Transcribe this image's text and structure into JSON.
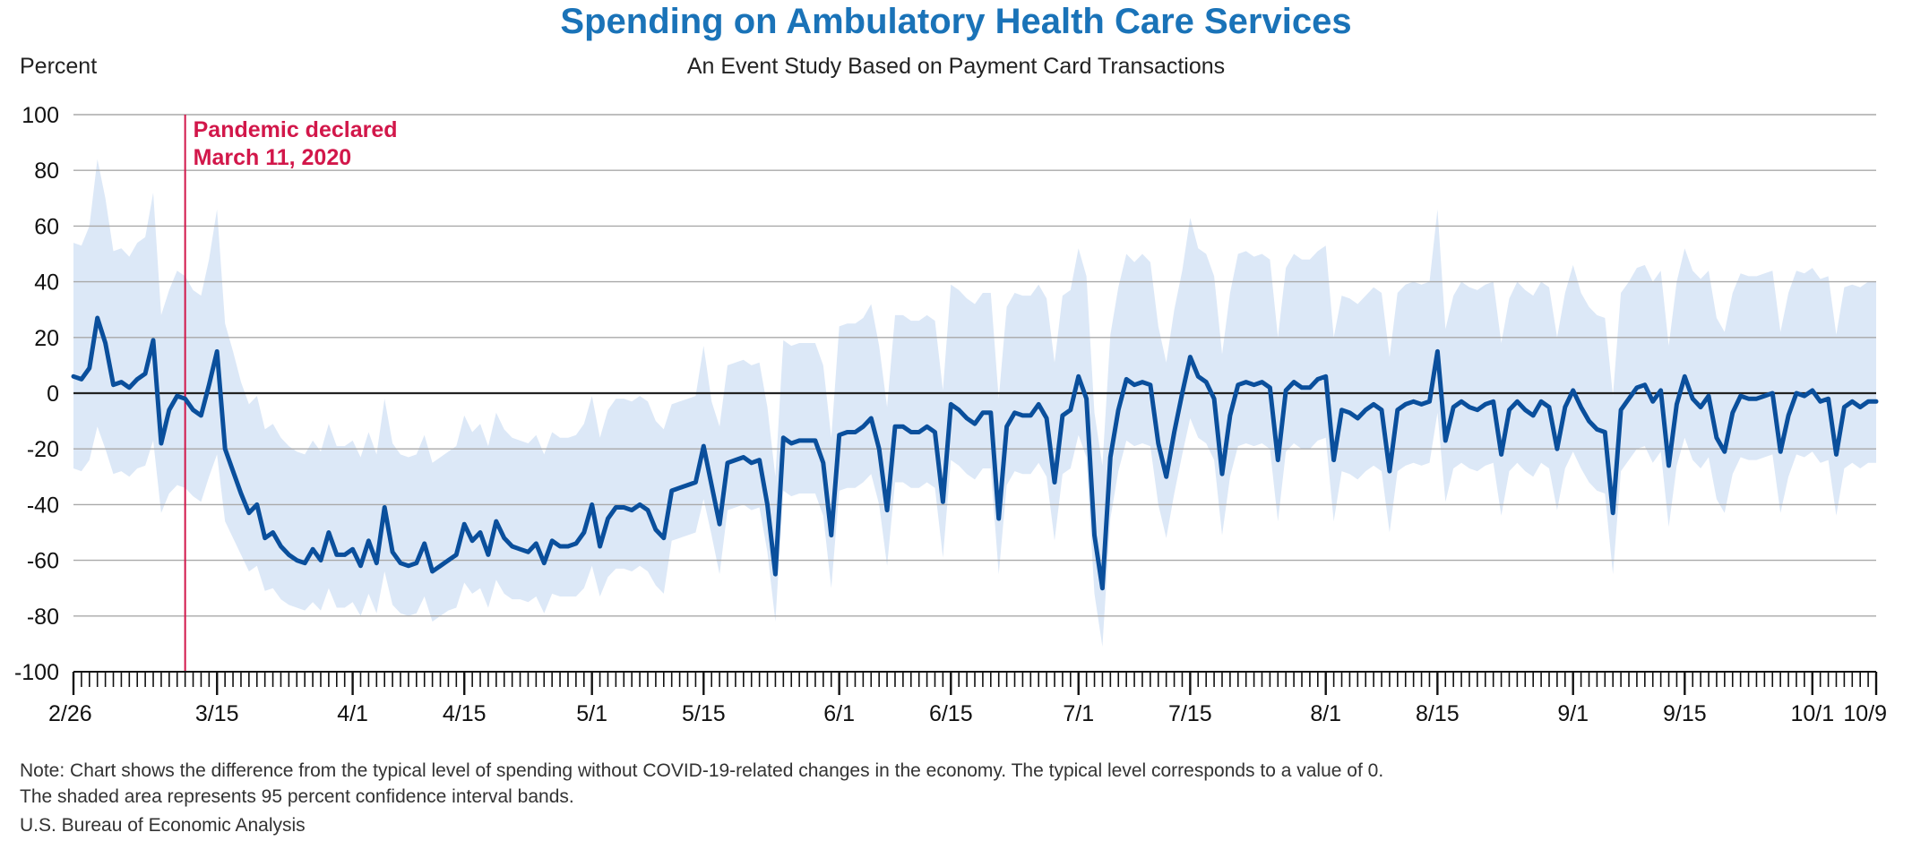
{
  "chart_data": {
    "type": "line",
    "title": "Spending on Ambulatory Health Care Services",
    "subtitle": "An Event Study Based on Payment Card Transactions",
    "ylabel": "Percent",
    "ylim": [
      -100,
      100
    ],
    "yticks": [
      100,
      80,
      60,
      40,
      20,
      0,
      -20,
      -40,
      -60,
      -80,
      -100
    ],
    "x_start_date": "2020-02-26",
    "x_end_date": "2020-10-09",
    "xtick_labels": [
      {
        "date": "2020-02-26",
        "label": "2/26"
      },
      {
        "date": "2020-03-15",
        "label": "3/15"
      },
      {
        "date": "2020-04-01",
        "label": "4/1"
      },
      {
        "date": "2020-04-15",
        "label": "4/15"
      },
      {
        "date": "2020-05-01",
        "label": "5/1"
      },
      {
        "date": "2020-05-15",
        "label": "5/15"
      },
      {
        "date": "2020-06-01",
        "label": "6/1"
      },
      {
        "date": "2020-06-15",
        "label": "6/15"
      },
      {
        "date": "2020-07-01",
        "label": "7/1"
      },
      {
        "date": "2020-07-15",
        "label": "7/15"
      },
      {
        "date": "2020-08-01",
        "label": "8/1"
      },
      {
        "date": "2020-08-15",
        "label": "8/15"
      },
      {
        "date": "2020-09-01",
        "label": "9/1"
      },
      {
        "date": "2020-09-15",
        "label": "9/15"
      },
      {
        "date": "2020-10-01",
        "label": "10/1"
      },
      {
        "date": "2020-10-09",
        "label": "10/9"
      }
    ],
    "annotation": {
      "date": "2020-03-11",
      "line1": "Pandemic declared",
      "line2": "March 11, 2020"
    },
    "series": [
      {
        "values": [
          6,
          5,
          9,
          27,
          18,
          3,
          4,
          2,
          5,
          7,
          19,
          -18,
          -6,
          -1,
          -2,
          -6,
          -8,
          3,
          15,
          -20,
          -28,
          -36,
          -43,
          -40,
          -52,
          -50,
          -55,
          -58,
          -60,
          -61,
          -56,
          -60,
          -50,
          -58,
          -58,
          -56,
          -62,
          -53,
          -61,
          -41,
          -57,
          -61,
          -62,
          -61,
          -54,
          -64,
          -62,
          -60,
          -58,
          -47,
          -53,
          -50,
          -58,
          -46,
          -52,
          -55,
          -56,
          -57,
          -54,
          -61,
          -53,
          -55,
          -55,
          -54,
          -50,
          -40,
          -55,
          -45,
          -41,
          -41,
          -42,
          -40,
          -42,
          -49,
          -52,
          -35,
          -34,
          -33,
          -32,
          -19,
          -33,
          -47,
          -25,
          -24,
          -23,
          -25,
          -24,
          -40,
          -65,
          -16,
          -18,
          -17,
          -17,
          -17,
          -25,
          -51,
          -15,
          -14,
          -14,
          -12,
          -9,
          -20,
          -42,
          -12,
          -12,
          -14,
          -14,
          -12,
          -14,
          -39,
          -4,
          -6,
          -9,
          -11,
          -7,
          -7,
          -45,
          -12,
          -7,
          -8,
          -8,
          -4,
          -9,
          -32,
          -8,
          -6,
          6,
          -2,
          -51,
          -70,
          -23,
          -6,
          5,
          3,
          4,
          3,
          -18,
          -30,
          -14,
          0,
          13,
          6,
          4,
          -2,
          -29,
          -8,
          3,
          4,
          3,
          4,
          2,
          -24,
          1,
          4,
          2,
          2,
          5,
          6,
          -24,
          -6,
          -7,
          -9,
          -6,
          -4,
          -6,
          -28,
          -6,
          -4,
          -3,
          -4,
          -3,
          15,
          -17,
          -5,
          -3,
          -5,
          -6,
          -4,
          -3,
          -22,
          -6,
          -3,
          -6,
          -8,
          -3,
          -5,
          -20,
          -5,
          1,
          -5,
          -10,
          -13,
          -14,
          -43,
          -6,
          -2,
          2,
          3,
          -3,
          1,
          -26,
          -4,
          6,
          -2,
          -5,
          -1,
          -16,
          -21,
          -7,
          -1,
          -2,
          -2,
          -1,
          0,
          -21,
          -8,
          0,
          -1,
          1,
          -3,
          -2,
          -22,
          -5,
          -3,
          -5,
          -3,
          -3
        ]
      },
      {
        "name": "95 percent confidence interval",
        "band": "upper",
        "values": [
          54,
          53,
          60,
          84,
          70,
          51,
          52,
          49,
          54,
          56,
          72,
          28,
          37,
          44,
          42,
          37,
          35,
          48,
          66,
          25,
          15,
          4,
          -4,
          -1,
          -13,
          -11,
          -16,
          -19,
          -21,
          -22,
          -17,
          -21,
          -11,
          -19,
          -19,
          -17,
          -23,
          -14,
          -22,
          -2,
          -18,
          -22,
          -23,
          -22,
          -15,
          -25,
          -23,
          -21,
          -19,
          -8,
          -14,
          -11,
          -19,
          -7,
          -13,
          -16,
          -17,
          -18,
          -15,
          -22,
          -14,
          -16,
          -16,
          -15,
          -11,
          -1,
          -16,
          -6,
          -2,
          -2,
          -3,
          -1,
          -3,
          -10,
          -13,
          -4,
          -3,
          -2,
          -1,
          17,
          -3,
          -12,
          10,
          11,
          12,
          10,
          11,
          -5,
          -30,
          19,
          17,
          18,
          18,
          18,
          10,
          -16,
          24,
          25,
          25,
          27,
          32,
          17,
          -5,
          28,
          28,
          26,
          26,
          28,
          26,
          1,
          39,
          37,
          34,
          32,
          36,
          36,
          -2,
          31,
          36,
          35,
          35,
          39,
          34,
          11,
          35,
          37,
          52,
          42,
          -7,
          -26,
          21,
          38,
          50,
          47,
          50,
          47,
          24,
          11,
          30,
          44,
          63,
          52,
          50,
          42,
          14,
          36,
          50,
          51,
          49,
          50,
          48,
          20,
          45,
          50,
          48,
          48,
          51,
          53,
          20,
          35,
          34,
          32,
          35,
          38,
          36,
          13,
          36,
          39,
          40,
          39,
          40,
          66,
          23,
          35,
          40,
          38,
          37,
          39,
          40,
          18,
          34,
          40,
          37,
          35,
          40,
          38,
          20,
          36,
          46,
          36,
          31,
          28,
          27,
          -1,
          36,
          40,
          45,
          46,
          40,
          44,
          17,
          40,
          52,
          44,
          41,
          44,
          27,
          22,
          36,
          43,
          42,
          42,
          43,
          44,
          22,
          36,
          44,
          43,
          45,
          41,
          42,
          21,
          38,
          39,
          38,
          40,
          40
        ]
      },
      {
        "name": "95 percent confidence interval",
        "band": "lower",
        "values": [
          -27,
          -28,
          -24,
          -12,
          -20,
          -29,
          -28,
          -30,
          -27,
          -26,
          -17,
          -43,
          -36,
          -33,
          -34,
          -37,
          -39,
          -30,
          -22,
          -46,
          -52,
          -58,
          -64,
          -62,
          -71,
          -70,
          -74,
          -76,
          -77,
          -78,
          -75,
          -78,
          -70,
          -77,
          -77,
          -75,
          -80,
          -72,
          -79,
          -64,
          -76,
          -79,
          -80,
          -79,
          -73,
          -82,
          -80,
          -78,
          -77,
          -68,
          -72,
          -70,
          -77,
          -67,
          -72,
          -74,
          -74,
          -75,
          -73,
          -79,
          -72,
          -73,
          -73,
          -73,
          -70,
          -62,
          -73,
          -66,
          -63,
          -63,
          -64,
          -62,
          -64,
          -69,
          -72,
          -53,
          -52,
          -51,
          -50,
          -38,
          -51,
          -65,
          -42,
          -41,
          -40,
          -42,
          -41,
          -57,
          -82,
          -35,
          -37,
          -36,
          -36,
          -36,
          -44,
          -70,
          -35,
          -34,
          -34,
          -32,
          -29,
          -40,
          -62,
          -32,
          -32,
          -34,
          -34,
          -32,
          -34,
          -59,
          -24,
          -26,
          -29,
          -31,
          -27,
          -27,
          -65,
          -33,
          -28,
          -29,
          -29,
          -25,
          -30,
          -53,
          -29,
          -27,
          -15,
          -23,
          -72,
          -91,
          -45,
          -28,
          -17,
          -19,
          -18,
          -19,
          -40,
          -52,
          -36,
          -22,
          -9,
          -16,
          -18,
          -24,
          -51,
          -30,
          -19,
          -18,
          -19,
          -18,
          -20,
          -46,
          -21,
          -18,
          -20,
          -20,
          -17,
          -16,
          -46,
          -28,
          -29,
          -31,
          -28,
          -26,
          -28,
          -50,
          -28,
          -26,
          -25,
          -26,
          -25,
          -7,
          -39,
          -27,
          -25,
          -27,
          -28,
          -26,
          -25,
          -44,
          -28,
          -25,
          -28,
          -30,
          -25,
          -27,
          -42,
          -27,
          -21,
          -27,
          -32,
          -35,
          -36,
          -65,
          -28,
          -24,
          -20,
          -19,
          -25,
          -21,
          -48,
          -26,
          -16,
          -24,
          -27,
          -23,
          -38,
          -43,
          -29,
          -23,
          -24,
          -24,
          -23,
          -22,
          -43,
          -30,
          -22,
          -23,
          -21,
          -25,
          -24,
          -44,
          -27,
          -25,
          -27,
          -25,
          -25
        ]
      }
    ],
    "colors": {
      "line": "#0a4f9c",
      "band": "#dce8f7",
      "grid": "#a9a9a9",
      "zero": "#222222",
      "annotation": "#d2174a"
    },
    "grid": true
  },
  "note": {
    "line1": "Note: Chart shows the difference from the typical level of spending without COVID-19-related changes in the economy. The typical level corresponds to a value of 0.",
    "line2": "The shaded area represents 95 percent confidence interval bands."
  },
  "source": "U.S. Bureau of Economic Analysis"
}
